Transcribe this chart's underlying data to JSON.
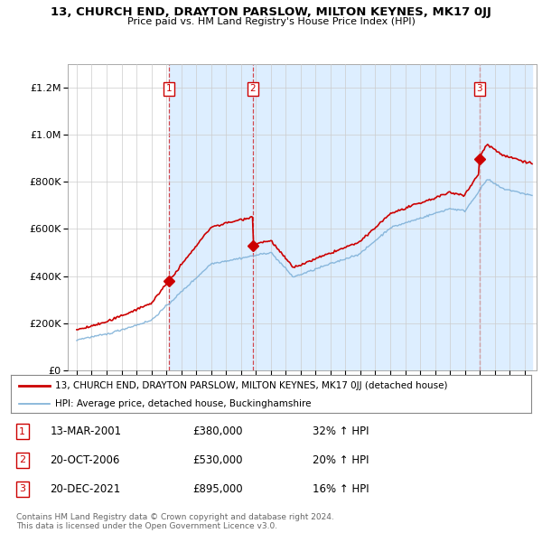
{
  "title": "13, CHURCH END, DRAYTON PARSLOW, MILTON KEYNES, MK17 0JJ",
  "subtitle": "Price paid vs. HM Land Registry's House Price Index (HPI)",
  "legend_line1": "13, CHURCH END, DRAYTON PARSLOW, MILTON KEYNES, MK17 0JJ (detached house)",
  "legend_line2": "HPI: Average price, detached house, Buckinghamshire",
  "footer1": "Contains HM Land Registry data © Crown copyright and database right 2024.",
  "footer2": "This data is licensed under the Open Government Licence v3.0.",
  "transactions": [
    {
      "num": 1,
      "date": "13-MAR-2001",
      "price": 380000,
      "pct": "32%",
      "dir": "↑"
    },
    {
      "num": 2,
      "date": "20-OCT-2006",
      "price": 530000,
      "pct": "20%",
      "dir": "↑"
    },
    {
      "num": 3,
      "date": "20-DEC-2021",
      "price": 895000,
      "pct": "16%",
      "dir": "↑"
    }
  ],
  "transaction_years": [
    2001.2,
    2006.8,
    2021.97
  ],
  "transaction_prices": [
    380000,
    530000,
    895000
  ],
  "red_line_color": "#cc0000",
  "blue_line_color": "#7aaed6",
  "shade_color": "#ddeeff",
  "grid_color": "#cccccc",
  "ylim": [
    0,
    1300000
  ],
  "yticks": [
    0,
    200000,
    400000,
    600000,
    800000,
    1000000,
    1200000
  ],
  "xlabel_start_year": 1995,
  "xlabel_end_year": 2025
}
